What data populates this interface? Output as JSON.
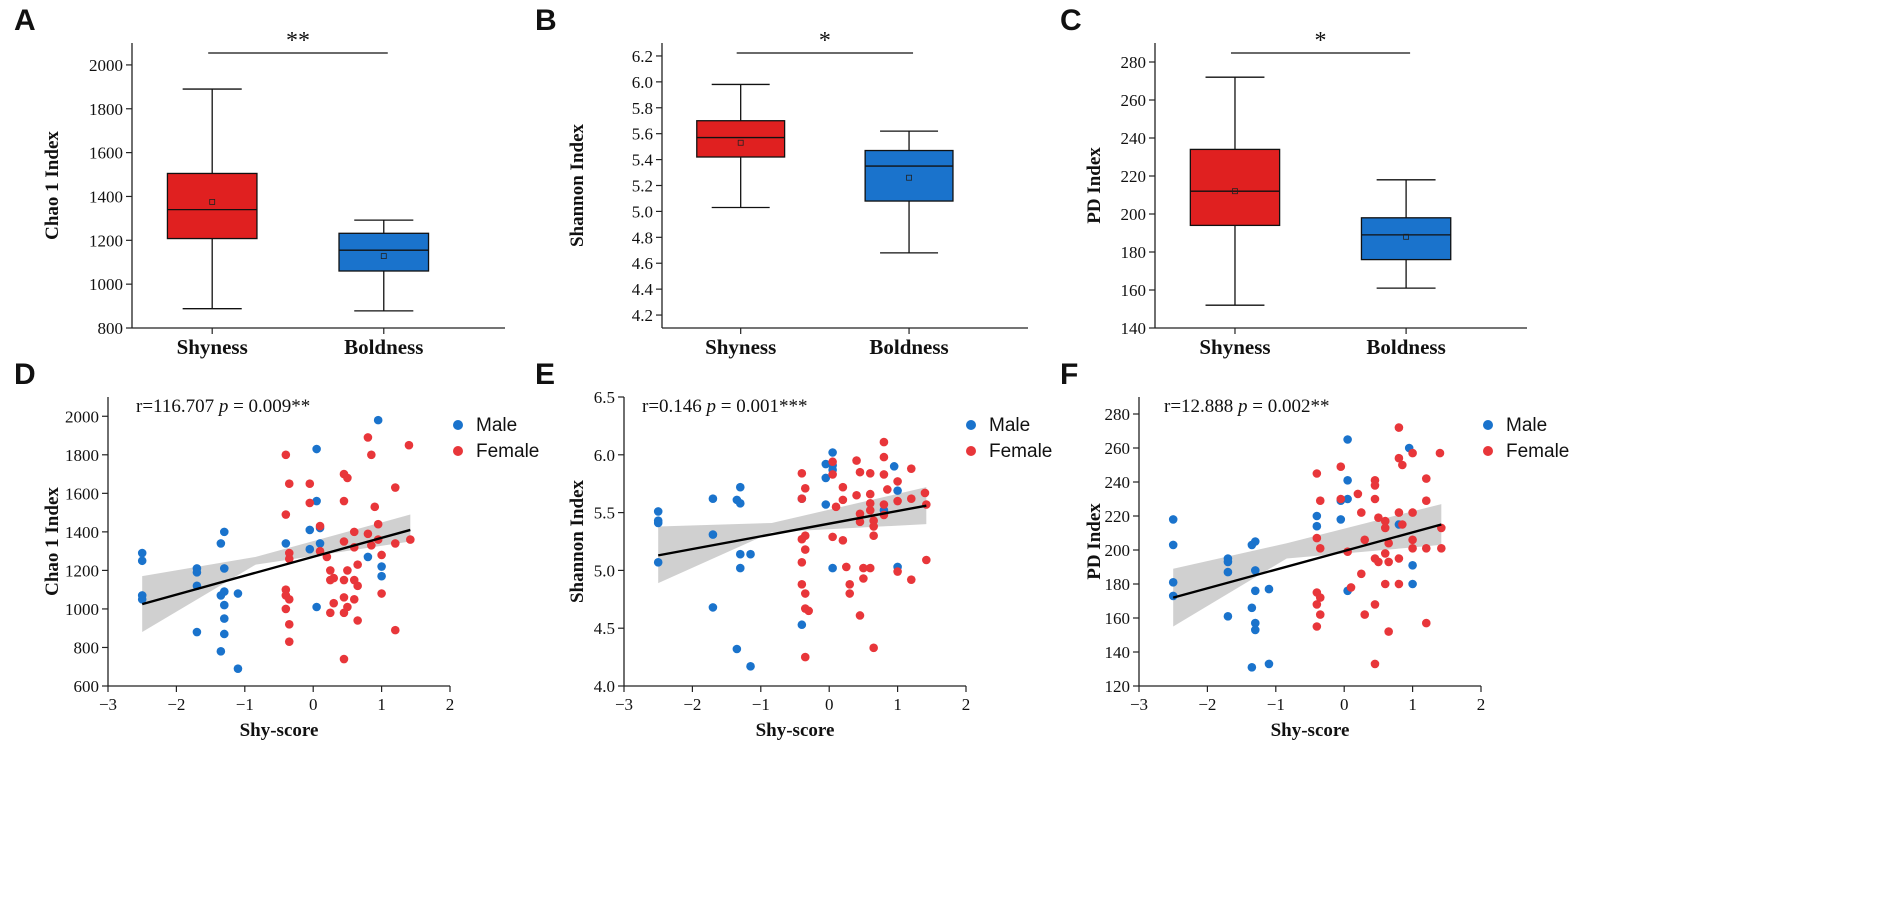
{
  "figure_title": "",
  "colors": {
    "shyness": "#e02020",
    "boldness": "#1a73cc",
    "male": "#1a73cc",
    "female": "#e8363a",
    "band": "#c8c8c8"
  },
  "chart_data": [
    {
      "panel": "A",
      "type": "box",
      "ylabel": "Chao 1 Index",
      "categories": [
        "Shyness",
        "Boldness"
      ],
      "ylim": [
        800,
        2100
      ],
      "yticks": [
        800,
        1000,
        1200,
        1400,
        1600,
        1800,
        2000
      ],
      "ytick_labels": [
        "800",
        "1000",
        "1200",
        "1400",
        "1600",
        "1800",
        "2000"
      ],
      "boxes": [
        {
          "min": 888,
          "q1": 1208,
          "median": 1340,
          "q3": 1505,
          "max": 1890,
          "mean": 1375
        },
        {
          "min": 878,
          "q1": 1060,
          "median": 1155,
          "q3": 1232,
          "max": 1292,
          "mean": 1128
        }
      ],
      "significance": "**"
    },
    {
      "panel": "B",
      "type": "box",
      "ylabel": "Shannon Index",
      "categories": [
        "Shyness",
        "Boldness"
      ],
      "ylim": [
        4.1,
        6.3
      ],
      "yticks": [
        4.2,
        4.4,
        4.6,
        4.8,
        5.0,
        5.2,
        5.4,
        5.6,
        5.8,
        6.0,
        6.2
      ],
      "ytick_labels": [
        "4.2",
        "4.4",
        "4.6",
        "4.8",
        "5.0",
        "5.2",
        "5.4",
        "5.6",
        "5.8",
        "6.0",
        "6.2"
      ],
      "boxes": [
        {
          "min": 5.03,
          "q1": 5.42,
          "median": 5.57,
          "q3": 5.7,
          "max": 5.98,
          "mean": 5.53
        },
        {
          "min": 4.68,
          "q1": 5.08,
          "median": 5.35,
          "q3": 5.47,
          "max": 5.62,
          "mean": 5.26
        }
      ],
      "significance": "*"
    },
    {
      "panel": "C",
      "type": "box",
      "ylabel": "PD Index",
      "categories": [
        "Shyness",
        "Boldness"
      ],
      "ylim": [
        140,
        290
      ],
      "yticks": [
        140,
        160,
        180,
        200,
        220,
        240,
        260,
        280
      ],
      "ytick_labels": [
        "140",
        "160",
        "180",
        "200",
        "220",
        "240",
        "260",
        "280"
      ],
      "boxes": [
        {
          "min": 152,
          "q1": 194,
          "median": 212,
          "q3": 234,
          "max": 272,
          "mean": 212
        },
        {
          "min": 161,
          "q1": 176,
          "median": 189,
          "q3": 198,
          "max": 218,
          "mean": 188
        }
      ],
      "significance": "*"
    },
    {
      "panel": "D",
      "type": "scatter",
      "ylabel": "Chao 1 Index",
      "xlabel": "Shy-score",
      "xlim": [
        -3,
        2
      ],
      "ylim": [
        600,
        2100
      ],
      "xticks": [
        -3,
        -2,
        -1,
        0,
        1,
        2
      ],
      "xtick_labels": [
        "−3",
        "−2",
        "−1",
        "0",
        "1",
        "2"
      ],
      "yticks": [
        600,
        800,
        1000,
        1200,
        1400,
        1600,
        1800,
        2000
      ],
      "ytick_labels": [
        "600",
        "800",
        "1000",
        "1200",
        "1400",
        "1600",
        "1800",
        "2000"
      ],
      "stat_r": "r=116.707",
      "stat_p_label": "p",
      "stat_p": " = 0.009**",
      "legend": [
        "Male",
        "Female"
      ],
      "fit": {
        "x0": -2.5,
        "y0": 1025,
        "x1": 1.42,
        "y1": 1410,
        "band_lo": [
          880,
          1230,
          1350
        ],
        "band_hi": [
          1170,
          1270,
          1490
        ]
      },
      "male": [
        [
          -2.5,
          1290
        ],
        [
          -2.5,
          1250
        ],
        [
          -2.5,
          1070
        ],
        [
          -2.5,
          1050
        ],
        [
          -1.7,
          1210
        ],
        [
          -1.7,
          1190
        ],
        [
          -1.7,
          1120
        ],
        [
          -1.7,
          880
        ],
        [
          -1.35,
          1340
        ],
        [
          -1.3,
          1400
        ],
        [
          -1.3,
          1210
        ],
        [
          -1.3,
          1090
        ],
        [
          -1.35,
          1070
        ],
        [
          -1.3,
          1020
        ],
        [
          -1.3,
          950
        ],
        [
          -1.3,
          870
        ],
        [
          -1.35,
          780
        ],
        [
          -1.1,
          1080
        ],
        [
          -1.1,
          690
        ],
        [
          -0.4,
          1340
        ],
        [
          -0.05,
          1410
        ],
        [
          -0.05,
          1310
        ],
        [
          0.05,
          1830
        ],
        [
          0.05,
          1560
        ],
        [
          0.1,
          1420
        ],
        [
          0.1,
          1340
        ],
        [
          0.05,
          1010
        ],
        [
          0.95,
          1980
        ],
        [
          1.0,
          1220
        ],
        [
          1.0,
          1170
        ],
        [
          0.8,
          1270
        ]
      ],
      "female": [
        [
          -0.4,
          1800
        ],
        [
          -0.35,
          1650
        ],
        [
          -0.4,
          1490
        ],
        [
          -0.35,
          1290
        ],
        [
          -0.35,
          1260
        ],
        [
          -0.4,
          1100
        ],
        [
          -0.4,
          1070
        ],
        [
          -0.35,
          1050
        ],
        [
          -0.4,
          1000
        ],
        [
          -0.35,
          920
        ],
        [
          -0.35,
          830
        ],
        [
          -0.05,
          1650
        ],
        [
          -0.05,
          1550
        ],
        [
          0.1,
          1430
        ],
        [
          0.1,
          1300
        ],
        [
          0.2,
          1270
        ],
        [
          0.25,
          1200
        ],
        [
          0.3,
          1160
        ],
        [
          0.25,
          1150
        ],
        [
          0.3,
          1030
        ],
        [
          0.25,
          980
        ],
        [
          0.45,
          1700
        ],
        [
          0.5,
          1680
        ],
        [
          0.45,
          1560
        ],
        [
          0.45,
          1350
        ],
        [
          0.5,
          1200
        ],
        [
          0.45,
          1150
        ],
        [
          0.45,
          1060
        ],
        [
          0.5,
          1010
        ],
        [
          0.45,
          980
        ],
        [
          0.45,
          740
        ],
        [
          0.6,
          1400
        ],
        [
          0.6,
          1320
        ],
        [
          0.65,
          1230
        ],
        [
          0.6,
          1150
        ],
        [
          0.65,
          1120
        ],
        [
          0.6,
          1050
        ],
        [
          0.65,
          940
        ],
        [
          0.8,
          1890
        ],
        [
          0.85,
          1800
        ],
        [
          0.8,
          1390
        ],
        [
          0.85,
          1330
        ],
        [
          0.9,
          1530
        ],
        [
          0.95,
          1440
        ],
        [
          0.95,
          1360
        ],
        [
          1.0,
          1280
        ],
        [
          1.0,
          1080
        ],
        [
          1.2,
          1630
        ],
        [
          1.2,
          1340
        ],
        [
          1.2,
          890
        ],
        [
          1.4,
          1850
        ],
        [
          1.42,
          1360
        ]
      ]
    },
    {
      "panel": "E",
      "type": "scatter",
      "ylabel": "Shannon Index",
      "xlabel": "Shy-score",
      "xlim": [
        -3,
        2
      ],
      "ylim": [
        4.0,
        6.5
      ],
      "xticks": [
        -3,
        -2,
        -1,
        0,
        1,
        2
      ],
      "xtick_labels": [
        "−3",
        "−2",
        "−1",
        "0",
        "1",
        "2"
      ],
      "yticks": [
        4.0,
        4.5,
        5.0,
        5.5,
        6.0,
        6.5
      ],
      "ytick_labels": [
        "4.0",
        "4.5",
        "5.0",
        "5.5",
        "6.0",
        "6.5"
      ],
      "stat_r": "r=0.146",
      "stat_p_label": "p",
      "stat_p": " = 0.001***",
      "legend": [
        "Male",
        "Female"
      ],
      "fit": {
        "x0": -2.5,
        "y0": 5.13,
        "x1": 1.42,
        "y1": 5.56,
        "band_lo": [
          4.89,
          5.33,
          5.4
        ],
        "band_hi": [
          5.38,
          5.41,
          5.72
        ]
      },
      "male": [
        [
          -2.5,
          5.51
        ],
        [
          -2.5,
          5.43
        ],
        [
          -2.5,
          5.41
        ],
        [
          -2.5,
          5.07
        ],
        [
          -1.7,
          5.62
        ],
        [
          -1.7,
          5.31
        ],
        [
          -1.7,
          4.68
        ],
        [
          -1.35,
          5.61
        ],
        [
          -1.3,
          5.72
        ],
        [
          -1.3,
          5.58
        ],
        [
          -1.3,
          5.14
        ],
        [
          -1.3,
          5.02
        ],
        [
          -1.35,
          4.32
        ],
        [
          -1.15,
          5.14
        ],
        [
          -1.15,
          4.17
        ],
        [
          -0.4,
          5.62
        ],
        [
          -0.4,
          4.53
        ],
        [
          -0.05,
          5.92
        ],
        [
          -0.05,
          5.8
        ],
        [
          -0.05,
          5.57
        ],
        [
          0.05,
          6.02
        ],
        [
          0.05,
          5.91
        ],
        [
          0.05,
          5.87
        ],
        [
          0.05,
          5.02
        ],
        [
          0.95,
          5.9
        ],
        [
          1.0,
          5.69
        ],
        [
          1.0,
          5.03
        ],
        [
          0.8,
          5.52
        ]
      ],
      "female": [
        [
          -0.4,
          5.84
        ],
        [
          -0.35,
          5.71
        ],
        [
          -0.4,
          5.62
        ],
        [
          -0.35,
          5.3
        ],
        [
          -0.4,
          5.27
        ],
        [
          -0.35,
          5.18
        ],
        [
          -0.4,
          5.07
        ],
        [
          -0.4,
          4.88
        ],
        [
          -0.35,
          4.8
        ],
        [
          -0.35,
          4.67
        ],
        [
          -0.3,
          4.65
        ],
        [
          -0.35,
          4.25
        ],
        [
          0.05,
          5.94
        ],
        [
          0.05,
          5.83
        ],
        [
          0.1,
          5.55
        ],
        [
          0.05,
          5.29
        ],
        [
          0.2,
          5.72
        ],
        [
          0.2,
          5.61
        ],
        [
          0.2,
          5.26
        ],
        [
          0.25,
          5.03
        ],
        [
          0.3,
          4.88
        ],
        [
          0.3,
          4.8
        ],
        [
          0.4,
          5.95
        ],
        [
          0.45,
          5.85
        ],
        [
          0.4,
          5.65
        ],
        [
          0.45,
          5.49
        ],
        [
          0.45,
          5.42
        ],
        [
          0.5,
          5.02
        ],
        [
          0.45,
          4.61
        ],
        [
          0.5,
          4.93
        ],
        [
          0.6,
          5.84
        ],
        [
          0.6,
          5.66
        ],
        [
          0.6,
          5.58
        ],
        [
          0.6,
          5.52
        ],
        [
          0.65,
          5.43
        ],
        [
          0.65,
          5.38
        ],
        [
          0.65,
          5.3
        ],
        [
          0.6,
          5.02
        ],
        [
          0.65,
          4.33
        ],
        [
          0.8,
          6.11
        ],
        [
          0.8,
          5.98
        ],
        [
          0.8,
          5.83
        ],
        [
          0.85,
          5.7
        ],
        [
          0.8,
          5.57
        ],
        [
          0.8,
          5.48
        ],
        [
          1.0,
          5.77
        ],
        [
          1.0,
          5.6
        ],
        [
          1.0,
          4.99
        ],
        [
          1.2,
          5.88
        ],
        [
          1.2,
          5.62
        ],
        [
          1.2,
          4.92
        ],
        [
          1.4,
          5.67
        ],
        [
          1.42,
          5.57
        ],
        [
          1.42,
          5.09
        ]
      ]
    },
    {
      "panel": "F",
      "type": "scatter",
      "ylabel": "PD Index",
      "xlabel": "Shy-score",
      "xlim": [
        -3,
        2
      ],
      "ylim": [
        120,
        290
      ],
      "xticks": [
        -3,
        -2,
        -1,
        0,
        1,
        2
      ],
      "xtick_labels": [
        "−3",
        "−2",
        "−1",
        "0",
        "1",
        "2"
      ],
      "yticks": [
        120,
        140,
        160,
        180,
        200,
        220,
        240,
        260,
        280
      ],
      "ytick_labels": [
        "120",
        "140",
        "160",
        "180",
        "200",
        "220",
        "240",
        "260",
        "280"
      ],
      "stat_r": "r=12.888",
      "stat_p_label": "p",
      "stat_p": " = 0.002**",
      "legend": [
        "Male",
        "Female"
      ],
      "fit": {
        "x0": -2.5,
        "y0": 172,
        "x1": 1.42,
        "y1": 215,
        "band_lo": [
          155,
          195,
          203
        ],
        "band_hi": [
          189,
          204,
          227
        ]
      },
      "male": [
        [
          -2.5,
          218
        ],
        [
          -2.5,
          203
        ],
        [
          -2.5,
          181
        ],
        [
          -2.5,
          173
        ],
        [
          -1.7,
          195
        ],
        [
          -1.7,
          193
        ],
        [
          -1.7,
          187
        ],
        [
          -1.7,
          161
        ],
        [
          -1.35,
          203
        ],
        [
          -1.3,
          205
        ],
        [
          -1.3,
          188
        ],
        [
          -1.3,
          176
        ],
        [
          -1.35,
          166
        ],
        [
          -1.3,
          157
        ],
        [
          -1.3,
          153
        ],
        [
          -1.35,
          131
        ],
        [
          -1.1,
          177
        ],
        [
          -1.1,
          133
        ],
        [
          -0.4,
          220
        ],
        [
          -0.4,
          214
        ],
        [
          -0.05,
          229
        ],
        [
          -0.05,
          218
        ],
        [
          0.05,
          265
        ],
        [
          0.05,
          241
        ],
        [
          0.05,
          230
        ],
        [
          0.05,
          176
        ],
        [
          0.95,
          260
        ],
        [
          1.0,
          191
        ],
        [
          1.0,
          180
        ],
        [
          0.8,
          215
        ]
      ],
      "female": [
        [
          -0.4,
          245
        ],
        [
          -0.35,
          229
        ],
        [
          -0.4,
          207
        ],
        [
          -0.35,
          201
        ],
        [
          -0.4,
          175
        ],
        [
          -0.35,
          172
        ],
        [
          -0.4,
          168
        ],
        [
          -0.35,
          162
        ],
        [
          -0.4,
          155
        ],
        [
          -0.05,
          249
        ],
        [
          -0.05,
          230
        ],
        [
          0.05,
          199
        ],
        [
          0.1,
          178
        ],
        [
          0.2,
          233
        ],
        [
          0.25,
          222
        ],
        [
          0.3,
          206
        ],
        [
          0.25,
          186
        ],
        [
          0.3,
          162
        ],
        [
          0.45,
          241
        ],
        [
          0.45,
          238
        ],
        [
          0.45,
          230
        ],
        [
          0.5,
          219
        ],
        [
          0.45,
          195
        ],
        [
          0.5,
          193
        ],
        [
          0.45,
          168
        ],
        [
          0.45,
          133
        ],
        [
          0.6,
          217
        ],
        [
          0.6,
          213
        ],
        [
          0.65,
          204
        ],
        [
          0.6,
          198
        ],
        [
          0.65,
          193
        ],
        [
          0.6,
          180
        ],
        [
          0.65,
          152
        ],
        [
          0.8,
          272
        ],
        [
          0.8,
          254
        ],
        [
          0.85,
          250
        ],
        [
          0.8,
          222
        ],
        [
          0.85,
          215
        ],
        [
          0.8,
          195
        ],
        [
          0.8,
          180
        ],
        [
          1.0,
          257
        ],
        [
          1.0,
          222
        ],
        [
          1.0,
          206
        ],
        [
          1.0,
          201
        ],
        [
          1.2,
          242
        ],
        [
          1.2,
          229
        ],
        [
          1.2,
          201
        ],
        [
          1.2,
          157
        ],
        [
          1.4,
          257
        ],
        [
          1.42,
          213
        ],
        [
          1.42,
          201
        ]
      ]
    }
  ]
}
